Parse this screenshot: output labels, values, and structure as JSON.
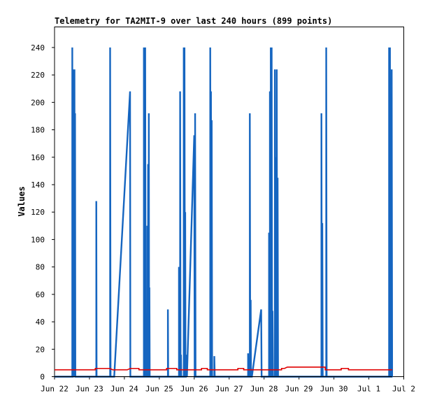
{
  "chart_data": {
    "type": "line",
    "title": "Telemetry for TA2MIT-9 over last 240 hours (899 points)",
    "xlabel": "",
    "ylabel": "Values",
    "ylim": [
      0,
      255
    ],
    "yticks": [
      0,
      20,
      40,
      60,
      80,
      100,
      120,
      140,
      160,
      180,
      200,
      220,
      240
    ],
    "xlim": [
      0,
      240
    ],
    "xticks": [
      {
        "x": 0,
        "label": "Jun 22"
      },
      {
        "x": 24,
        "label": "Jun 23"
      },
      {
        "x": 48,
        "label": "Jun 24"
      },
      {
        "x": 72,
        "label": "Jun 25"
      },
      {
        "x": 96,
        "label": "Jun 26"
      },
      {
        "x": 120,
        "label": "Jun 27"
      },
      {
        "x": 144,
        "label": "Jun 28"
      },
      {
        "x": 168,
        "label": "Jun 29"
      },
      {
        "x": 192,
        "label": "Jun 30"
      },
      {
        "x": 216,
        "label": "Jul 1"
      },
      {
        "x": 240,
        "label": "Jul 2"
      }
    ],
    "grid": false,
    "series": [
      {
        "color": "#1565c0",
        "points": [
          [
            0,
            0
          ],
          [
            12.2,
            0
          ],
          [
            12.2,
            240
          ],
          [
            12.4,
            0
          ],
          [
            12.6,
            0
          ],
          [
            12.6,
            224
          ],
          [
            12.9,
            0
          ],
          [
            13,
            65
          ],
          [
            13.2,
            0
          ],
          [
            13.4,
            97
          ],
          [
            13.5,
            0
          ],
          [
            13.7,
            224
          ],
          [
            13.9,
            0
          ],
          [
            14.1,
            192
          ],
          [
            14.3,
            0
          ],
          [
            14.5,
            0
          ],
          [
            28.7,
            0
          ],
          [
            28.7,
            128
          ],
          [
            28.9,
            0
          ],
          [
            38.2,
            0
          ],
          [
            38.2,
            240
          ],
          [
            38.5,
            0
          ],
          [
            41,
            0
          ],
          [
            51.9,
            208
          ],
          [
            52.1,
            0
          ],
          [
            61.4,
            0
          ],
          [
            61.4,
            240
          ],
          [
            61.7,
            0
          ],
          [
            62.3,
            0
          ],
          [
            62.3,
            240
          ],
          [
            62.6,
            0
          ],
          [
            63.7,
            0
          ],
          [
            63.7,
            110
          ],
          [
            63.9,
            0
          ],
          [
            64.3,
            0
          ],
          [
            64.3,
            155
          ],
          [
            64.5,
            0
          ],
          [
            64.8,
            0
          ],
          [
            64.8,
            192
          ],
          [
            65,
            0
          ],
          [
            65.2,
            0
          ],
          [
            65.2,
            65
          ],
          [
            65.4,
            0
          ],
          [
            77.9,
            0
          ],
          [
            77.9,
            49
          ],
          [
            78.1,
            0
          ],
          [
            85.5,
            0
          ],
          [
            85.5,
            80
          ],
          [
            85.7,
            0
          ],
          [
            86.3,
            0
          ],
          [
            86.3,
            208
          ],
          [
            86.6,
            0
          ],
          [
            86.9,
            0
          ],
          [
            86.9,
            16
          ],
          [
            87.1,
            0
          ],
          [
            88.8,
            0
          ],
          [
            88.8,
            240
          ],
          [
            89.1,
            0
          ],
          [
            89.3,
            0
          ],
          [
            89.3,
            240
          ],
          [
            89.6,
            0
          ],
          [
            89.8,
            0
          ],
          [
            89.8,
            120
          ],
          [
            90,
            0
          ],
          [
            90.3,
            0
          ],
          [
            90.3,
            16
          ],
          [
            91,
            0
          ],
          [
            96,
            176
          ],
          [
            96.3,
            0
          ],
          [
            96.6,
            0
          ],
          [
            96.6,
            192
          ],
          [
            96.9,
            0
          ],
          [
            107,
            0
          ],
          [
            107,
            240
          ],
          [
            107.3,
            0
          ],
          [
            107.5,
            0
          ],
          [
            107.5,
            208
          ],
          [
            107.8,
            0
          ],
          [
            108,
            0
          ],
          [
            108,
            187
          ],
          [
            108.3,
            0
          ],
          [
            109.8,
            0
          ],
          [
            109.8,
            15
          ],
          [
            110.1,
            0
          ],
          [
            133,
            0
          ],
          [
            133,
            17
          ],
          [
            133.2,
            0
          ],
          [
            134.2,
            0
          ],
          [
            134.2,
            192
          ],
          [
            134.5,
            0
          ],
          [
            134.8,
            0
          ],
          [
            134.8,
            56
          ],
          [
            135,
            0
          ],
          [
            135.6,
            0
          ],
          [
            142,
            49
          ],
          [
            142.3,
            0
          ],
          [
            147.4,
            0
          ],
          [
            147.4,
            105
          ],
          [
            147.7,
            0
          ],
          [
            148,
            0
          ],
          [
            148,
            208
          ],
          [
            148.3,
            0
          ],
          [
            148.6,
            0
          ],
          [
            148.6,
            240
          ],
          [
            148.9,
            0
          ],
          [
            149.2,
            0
          ],
          [
            149.2,
            240
          ],
          [
            149.5,
            0
          ],
          [
            149.8,
            0
          ],
          [
            149.8,
            48
          ],
          [
            150.1,
            0
          ],
          [
            151.4,
            0
          ],
          [
            151.4,
            224
          ],
          [
            151.7,
            0
          ],
          [
            152,
            0
          ],
          [
            152,
            160
          ],
          [
            152.3,
            0
          ],
          [
            152.7,
            0
          ],
          [
            152.7,
            224
          ],
          [
            153,
            0
          ],
          [
            153.3,
            0
          ],
          [
            153.3,
            145
          ],
          [
            153.6,
            0
          ],
          [
            183.4,
            0
          ],
          [
            183.4,
            192
          ],
          [
            183.7,
            0
          ],
          [
            184,
            0
          ],
          [
            184,
            112
          ],
          [
            184.3,
            0
          ],
          [
            186.7,
            0
          ],
          [
            186.7,
            240
          ],
          [
            187,
            0
          ],
          [
            229.9,
            0
          ],
          [
            229.9,
            240
          ],
          [
            230.2,
            0
          ],
          [
            230.5,
            0
          ],
          [
            230.5,
            240
          ],
          [
            230.8,
            0
          ],
          [
            231.1,
            0
          ],
          [
            231.1,
            112
          ],
          [
            231.4,
            0
          ],
          [
            231.7,
            0
          ],
          [
            231.7,
            224
          ],
          [
            232,
            0
          ]
        ]
      },
      {
        "color": "#e00000",
        "points": [
          [
            0,
            5
          ],
          [
            28,
            5
          ],
          [
            28,
            6
          ],
          [
            38,
            6
          ],
          [
            40,
            5
          ],
          [
            50,
            5
          ],
          [
            52,
            6
          ],
          [
            58,
            6
          ],
          [
            58,
            5
          ],
          [
            77,
            5
          ],
          [
            77,
            6
          ],
          [
            84,
            6
          ],
          [
            84,
            5
          ],
          [
            101,
            5
          ],
          [
            101,
            6
          ],
          [
            105,
            6
          ],
          [
            105,
            5
          ],
          [
            126,
            5
          ],
          [
            126,
            6
          ],
          [
            130,
            6
          ],
          [
            130,
            5
          ],
          [
            156,
            5
          ],
          [
            156,
            6
          ],
          [
            158,
            6
          ],
          [
            160,
            7
          ],
          [
            186,
            7
          ],
          [
            186,
            5
          ],
          [
            197,
            5
          ],
          [
            197,
            6
          ],
          [
            202,
            6
          ],
          [
            202,
            5
          ],
          [
            232,
            5
          ]
        ]
      },
      {
        "color": "#000000",
        "points": [
          [
            0,
            0
          ],
          [
            232,
            0
          ]
        ]
      }
    ]
  }
}
